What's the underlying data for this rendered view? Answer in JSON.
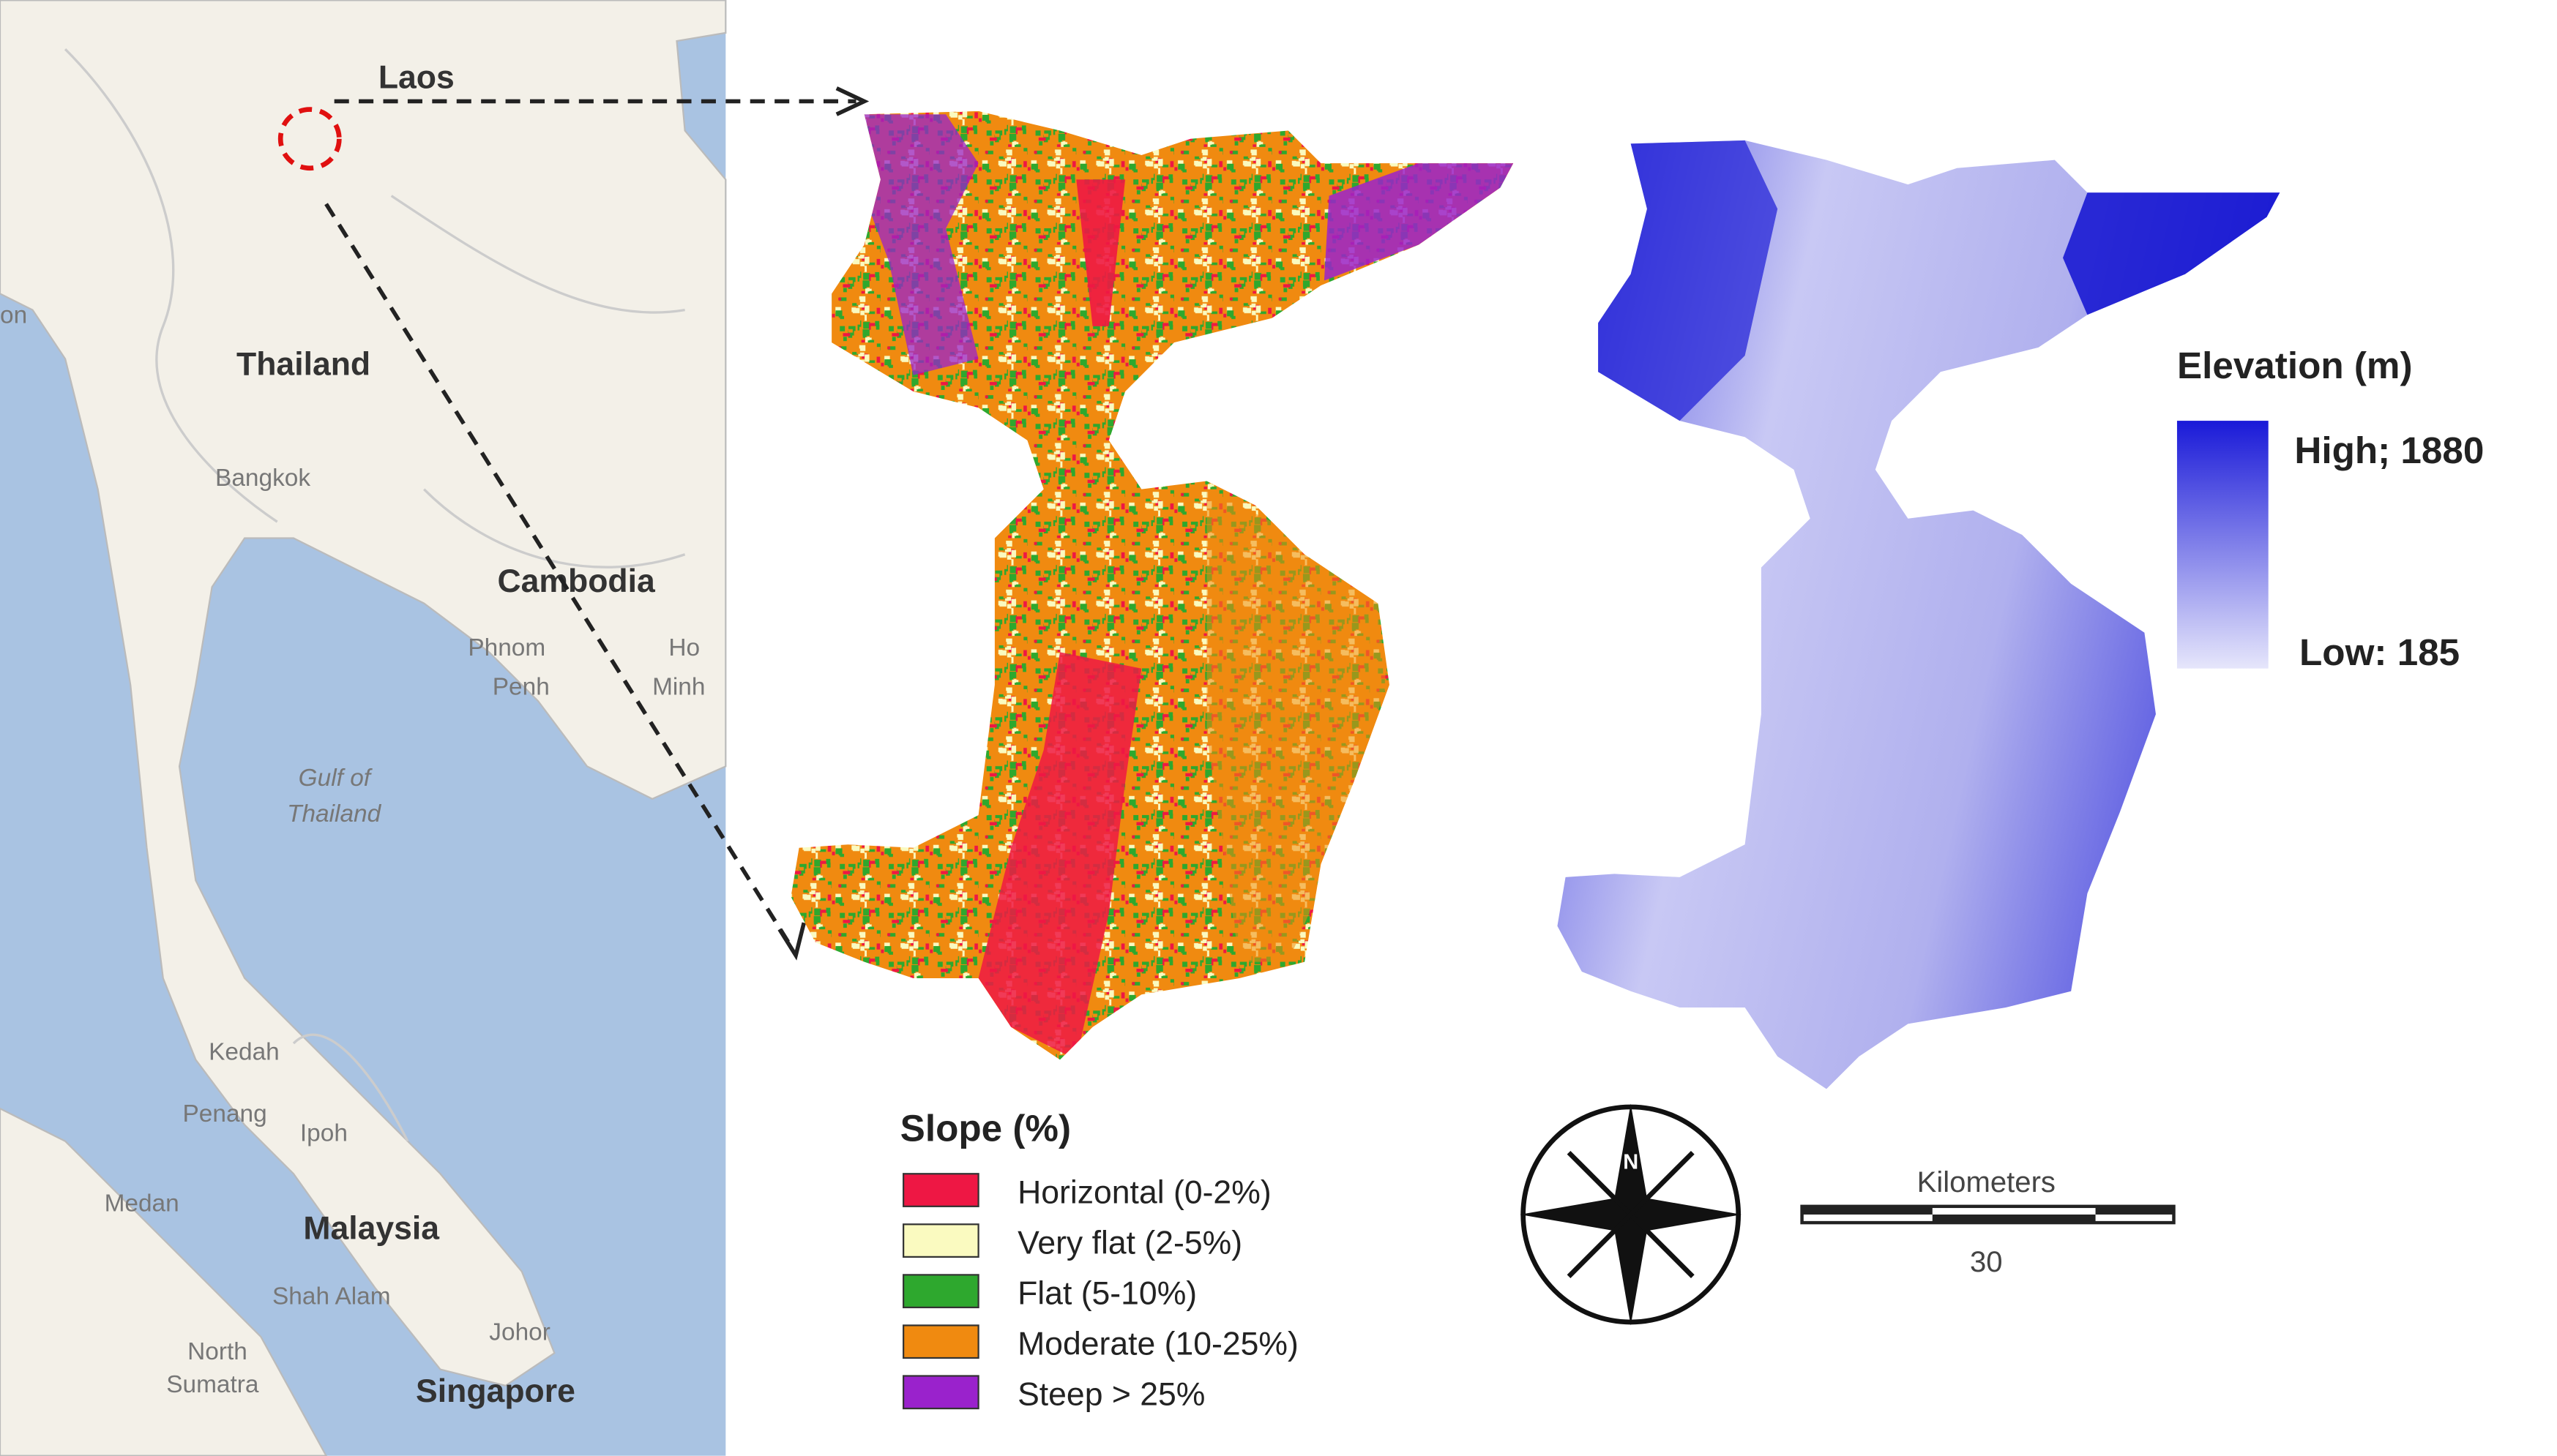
{
  "map": {
    "labels": [
      "Laos",
      "on",
      "Thailand",
      "Bangkok",
      "Cambodia",
      "Phnom",
      "Penh",
      "Ho",
      "Minh",
      "Gulf of",
      "Thailand",
      "Kedah",
      "Penang",
      "Ipoh",
      "Medan",
      "Malaysia",
      "Shah Alam",
      "North",
      "Sumatra",
      "Johor",
      "Singapore"
    ]
  },
  "slope_legend": {
    "title": "Slope (%)",
    "items": [
      {
        "label": "Horizontal (0-2%)",
        "color": "#ee1744"
      },
      {
        "label": "Very flat (2-5%)",
        "color": "#fafac0"
      },
      {
        "label": "Flat (5-10%)",
        "color": "#2ea82e"
      },
      {
        "label": "Moderate (10-25%)",
        "color": "#f08a10"
      },
      {
        "label": "Steep > 25%",
        "color": "#9a22cc"
      }
    ]
  },
  "elevation_legend": {
    "title": "Elevation (m)",
    "high": "High; 1880",
    "low": "Low: 185"
  },
  "scale_bar": {
    "unit": "Kilometers",
    "distance": "30"
  },
  "compass": {
    "label": "N"
  }
}
